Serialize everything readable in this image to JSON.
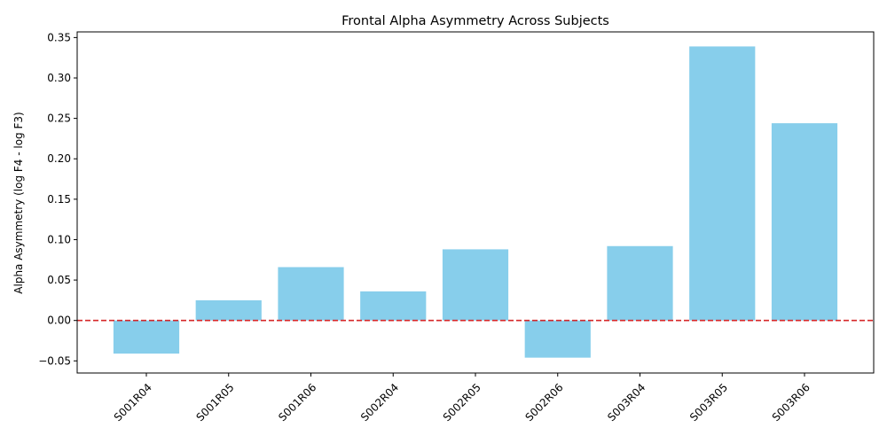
{
  "chart_data": {
    "type": "bar",
    "title": "Frontal Alpha Asymmetry Across Subjects",
    "xlabel": "",
    "ylabel": "Alpha Asymmetry (log F4 - log F3)",
    "categories": [
      "S001R04",
      "S001R05",
      "S001R06",
      "S002R04",
      "S002R05",
      "S002R06",
      "S003R04",
      "S003R05",
      "S003R06"
    ],
    "values": [
      -0.041,
      0.025,
      0.066,
      0.036,
      0.088,
      -0.046,
      0.092,
      0.339,
      0.244
    ],
    "ylim": [
      -0.065,
      0.357
    ],
    "yticks": [
      -0.05,
      0.0,
      0.05,
      0.1,
      0.15,
      0.2,
      0.25,
      0.3,
      0.35
    ],
    "ytick_labels": [
      "−0.05",
      "0.00",
      "0.05",
      "0.10",
      "0.15",
      "0.20",
      "0.25",
      "0.30",
      "0.35"
    ],
    "bar_color": "#87ceeb",
    "reference_line": {
      "y": 0,
      "color": "#d62728",
      "style": "dashed"
    },
    "grid": false,
    "legend": "none"
  }
}
